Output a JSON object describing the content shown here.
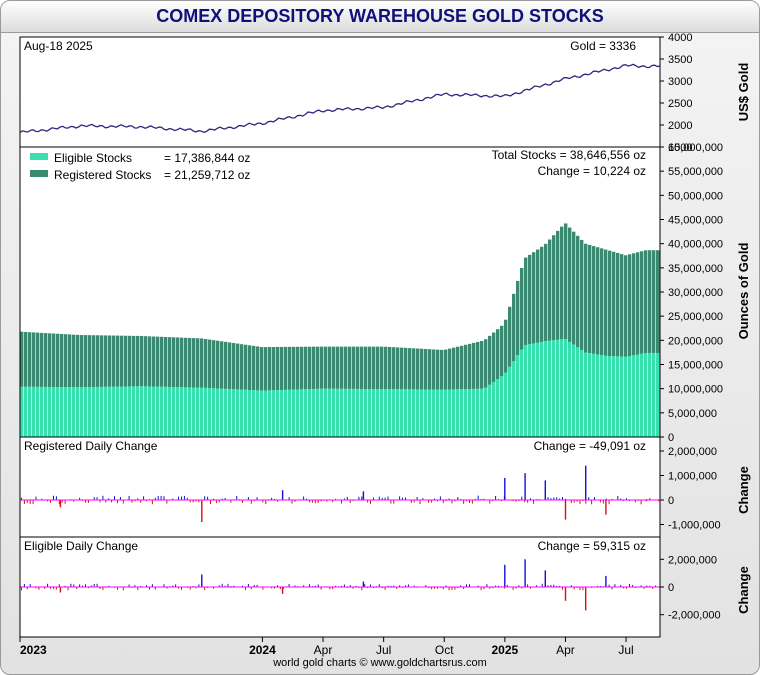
{
  "title": "COMEX DEPOSITORY WAREHOUSE GOLD STOCKS",
  "footer": "world gold charts © www.goldchartsrus.com",
  "gold_panel": {
    "date_label": "Aug-18  2025",
    "value_label": "Gold = 3336",
    "ylabel": "US$ Gold",
    "ylim": [
      1500,
      4000
    ],
    "yticks": [
      "1500",
      "2000",
      "2500",
      "3000",
      "3500",
      "4000"
    ]
  },
  "stocks_panel": {
    "legend": [
      {
        "label": "Eligible Stocks",
        "value": "= 17,386,844 oz",
        "color": "#38e0b0"
      },
      {
        "label": "Registered Stocks",
        "value": "= 21,259,712 oz",
        "color": "#3a8a72"
      }
    ],
    "total_label": "Total Stocks = 38,646,556 oz",
    "change_label": "Change = 10,224 oz",
    "ylabel": "Ounces of Gold",
    "ylim": [
      0,
      60000000
    ],
    "yticks": [
      "0",
      "5,000,000",
      "10,000,000",
      "15,000,000",
      "20,000,000",
      "25,000,000",
      "30,000,000",
      "35,000,000",
      "40,000,000",
      "45,000,000",
      "50,000,000",
      "55,000,000",
      "60,000,000"
    ]
  },
  "registered_panel": {
    "title": "Registered Daily Change",
    "change_label": "Change = -49,091 oz",
    "ylabel": "Change",
    "yticks": [
      "-1,000,000",
      "0",
      "1,000,000",
      "2,000,000"
    ]
  },
  "eligible_panel": {
    "title": "Eligible Daily Change",
    "change_label": "Change = 59,315 oz",
    "ylabel": "Change",
    "yticks": [
      "-2,000,000",
      "0",
      "2,000,000"
    ]
  },
  "x_axis": {
    "labels": [
      {
        "text": "2023",
        "bold": true
      },
      {
        "text": "2024",
        "bold": true
      },
      {
        "text": "Apr",
        "bold": false
      },
      {
        "text": "Jul",
        "bold": false
      },
      {
        "text": "Oct",
        "bold": false
      },
      {
        "text": "2025",
        "bold": true
      },
      {
        "text": "Apr",
        "bold": false
      },
      {
        "text": "Jul",
        "bold": false
      }
    ]
  },
  "colors": {
    "eligible": "#38e0b0",
    "registered": "#3a8a72",
    "gold_line": "#2a2a80",
    "positive": "#1010dd",
    "negative": "#dd1010",
    "zero": "#ff00ff",
    "title": "#10107a"
  },
  "chart_data": [
    {
      "type": "line",
      "name": "gold-price",
      "x": [
        "2023-01",
        "2023-04",
        "2023-07",
        "2023-10",
        "2024-01",
        "2024-04",
        "2024-07",
        "2024-10",
        "2025-01",
        "2025-04",
        "2025-07",
        "2025-08"
      ],
      "y": [
        1830,
        1980,
        1960,
        1860,
        2040,
        2330,
        2400,
        2700,
        2650,
        3050,
        3350,
        3336
      ],
      "ylim": [
        1500,
        4000
      ]
    },
    {
      "type": "bar",
      "name": "comex-stocks",
      "x": [
        "2023-01",
        "2023-04",
        "2023-07",
        "2023-10",
        "2024-01",
        "2024-04",
        "2024-07",
        "2024-10",
        "2024-12",
        "2025-01",
        "2025-02",
        "2025-03",
        "2025-04",
        "2025-05",
        "2025-06",
        "2025-07",
        "2025-08"
      ],
      "series": [
        {
          "name": "Eligible Stocks",
          "values": [
            10400000,
            10300000,
            10500000,
            10200000,
            9600000,
            10000000,
            9900000,
            9800000,
            10000000,
            13000000,
            19000000,
            19800000,
            20300000,
            17500000,
            16800000,
            16600000,
            17386844
          ]
        },
        {
          "name": "Registered Stocks",
          "values": [
            11400000,
            10800000,
            10400000,
            10200000,
            9000000,
            8700000,
            8800000,
            8200000,
            10000000,
            10500000,
            18000000,
            20000000,
            24000000,
            22500000,
            22000000,
            21000000,
            21259712
          ]
        }
      ],
      "ylim": [
        0,
        60000000
      ]
    },
    {
      "type": "bar",
      "name": "registered-daily-change",
      "x": [
        "2023-03",
        "2023-10",
        "2024-02",
        "2024-06",
        "2025-01",
        "2025-02",
        "2025-03",
        "2025-04",
        "2025-05",
        "2025-06",
        "2025-08"
      ],
      "values": [
        -300000,
        -900000,
        400000,
        350000,
        900000,
        1100000,
        800000,
        -800000,
        1400000,
        -600000,
        -49091
      ]
    },
    {
      "type": "bar",
      "name": "eligible-daily-change",
      "x": [
        "2023-03",
        "2023-10",
        "2024-02",
        "2024-06",
        "2025-01",
        "2025-02",
        "2025-03",
        "2025-04",
        "2025-05",
        "2025-06",
        "2025-08"
      ],
      "values": [
        -400000,
        900000,
        -500000,
        400000,
        1600000,
        2000000,
        1200000,
        -1000000,
        -1700000,
        800000,
        59315
      ]
    }
  ]
}
